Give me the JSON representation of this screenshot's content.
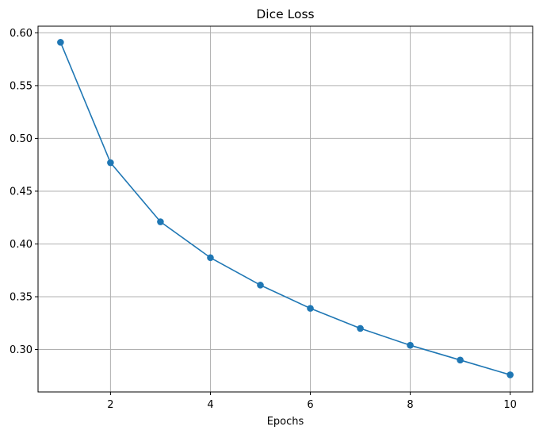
{
  "chart_data": {
    "type": "line",
    "title": "Dice Loss",
    "xlabel": "Epochs",
    "ylabel": "",
    "x": [
      1,
      2,
      3,
      4,
      5,
      6,
      7,
      8,
      9,
      10
    ],
    "series": [
      {
        "values": [
          0.591,
          0.477,
          0.421,
          0.387,
          0.361,
          0.339,
          0.32,
          0.304,
          0.29,
          0.276
        ],
        "color": "#1f77b4",
        "marker": "circle"
      }
    ],
    "xlim": [
      0.55,
      10.45
    ],
    "ylim": [
      0.2598,
      0.6063
    ],
    "x_ticks": [
      2,
      4,
      6,
      8,
      10
    ],
    "x_tick_labels": [
      "2",
      "4",
      "6",
      "8",
      "10"
    ],
    "y_ticks": [
      0.3,
      0.35,
      0.4,
      0.45,
      0.5,
      0.55,
      0.6
    ],
    "y_tick_labels": [
      "0.30",
      "0.35",
      "0.40",
      "0.45",
      "0.50",
      "0.55",
      "0.60"
    ],
    "grid": true,
    "legend": false
  }
}
